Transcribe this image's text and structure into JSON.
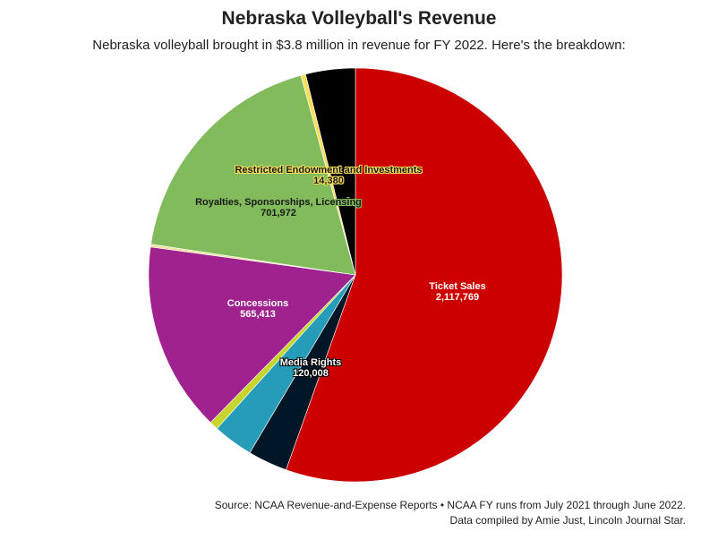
{
  "chart_data": {
    "type": "pie",
    "title": "Nebraska Volleyball's Revenue",
    "subtitle": "Nebraska volleyball brought in $3.8 million in revenue for FY 2022. Here's the breakdown:",
    "slices": [
      {
        "name": "Ticket Sales",
        "value": 2117769,
        "value_label": "2,117,769",
        "color": "#cc0000",
        "labeled": true
      },
      {
        "name": "Unlabeled navy",
        "value": 118000,
        "color": "#011627",
        "labeled": false
      },
      {
        "name": "Media Rights",
        "value": 120008,
        "value_label": "120,008",
        "color": "#279cb8",
        "labeled": true
      },
      {
        "name": "Unlabeled lime",
        "value": 26000,
        "color": "#c7d42b",
        "labeled": false
      },
      {
        "name": "Concessions",
        "value": 565413,
        "value_label": "565,413",
        "color": "#a0228f",
        "labeled": true
      },
      {
        "name": "Unlabeled pale yellow",
        "value": 8000,
        "color": "#f2e29b",
        "labeled": false
      },
      {
        "name": "Royalties, Sponsorships, Licensing",
        "value": 701972,
        "value_label": "701,972",
        "color": "#82bb5c",
        "labeled": true
      },
      {
        "name": "Restricted Endowment and Investments",
        "value": 14380,
        "value_label": "14,380",
        "color": "#f5df5c",
        "labeled": true
      },
      {
        "name": "Unlabeled black",
        "value": 148000,
        "color": "#000000",
        "labeled": false
      }
    ],
    "start_angle": "12 o'clock",
    "direction": "clockwise"
  },
  "source": {
    "line1": "Source: NCAA Revenue-and-Expense Reports • NCAA FY runs from July 2021 through June 2022.",
    "line2": "Data compiled by Amie Just, Lincoln Journal Star."
  }
}
